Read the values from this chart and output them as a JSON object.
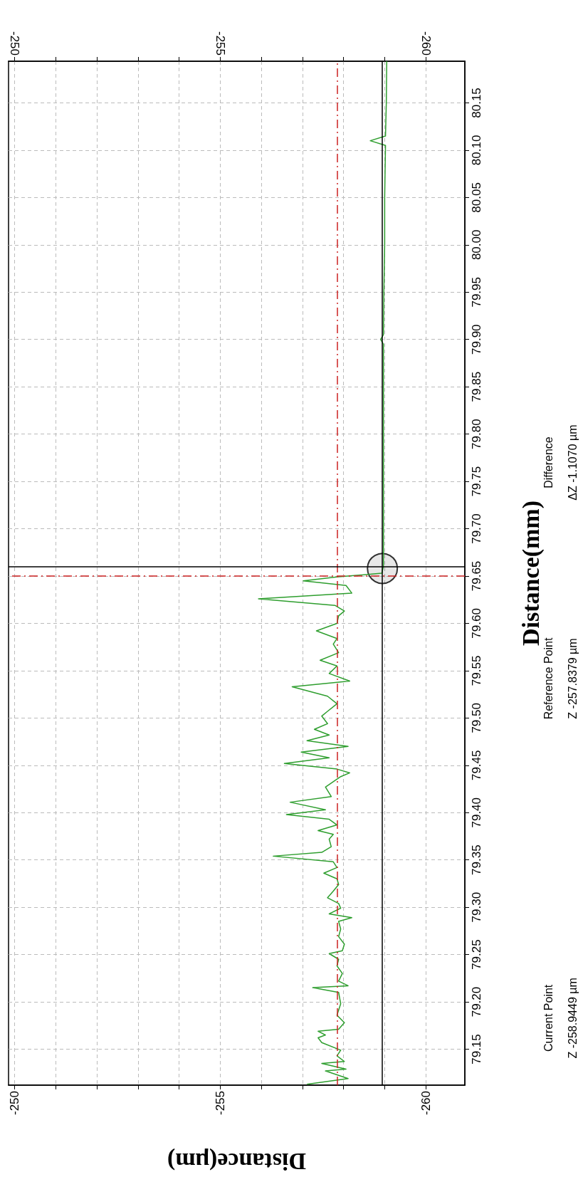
{
  "chart_data": {
    "type": "line",
    "xlabel": "Distance(μm)",
    "ylabel": "Distance(mm)",
    "xlim": [
      -249.85,
      -260.95
    ],
    "xticks": [
      {
        "value": -250,
        "label": "-250"
      },
      {
        "value": -251,
        "label": null
      },
      {
        "value": -252,
        "label": null
      },
      {
        "value": -253,
        "label": null
      },
      {
        "value": -254,
        "label": null
      },
      {
        "value": -255,
        "label": "-255"
      },
      {
        "value": -256,
        "label": null
      },
      {
        "value": -257,
        "label": null
      },
      {
        "value": -258,
        "label": null
      },
      {
        "value": -259,
        "label": null
      },
      {
        "value": -260,
        "label": "-260"
      }
    ],
    "x2lim": [
      -249.85,
      -260.95
    ],
    "x2ticks": [
      {
        "value": -250,
        "label": "-250"
      },
      {
        "value": -251,
        "label": null
      },
      {
        "value": -252,
        "label": null
      },
      {
        "value": -253,
        "label": null
      },
      {
        "value": -254,
        "label": null
      },
      {
        "value": -255,
        "label": "-255"
      },
      {
        "value": -256,
        "label": null
      },
      {
        "value": -257,
        "label": null
      },
      {
        "value": -258,
        "label": null
      },
      {
        "value": -259,
        "label": null
      },
      {
        "value": -260,
        "label": "-260"
      }
    ],
    "ylim": [
      79.112,
      80.194
    ],
    "yticks": [
      {
        "value": 79.15,
        "label": "79.15"
      },
      {
        "value": 79.2,
        "label": "79.20"
      },
      {
        "value": 79.25,
        "label": "79.25"
      },
      {
        "value": 79.3,
        "label": "79.30"
      },
      {
        "value": 79.35,
        "label": "79.35"
      },
      {
        "value": 79.4,
        "label": "79.40"
      },
      {
        "value": 79.45,
        "label": "79.45"
      },
      {
        "value": 79.5,
        "label": "79.50"
      },
      {
        "value": 79.55,
        "label": "79.55"
      },
      {
        "value": 79.6,
        "label": "79.60"
      },
      {
        "value": 79.65,
        "label": "79.65"
      },
      {
        "value": 79.7,
        "label": "79.70"
      },
      {
        "value": 79.75,
        "label": "79.75"
      },
      {
        "value": 79.8,
        "label": "79.80"
      },
      {
        "value": 79.85,
        "label": "79.85"
      },
      {
        "value": 79.9,
        "label": "79.90"
      },
      {
        "value": 79.95,
        "label": "79.95"
      },
      {
        "value": 80.0,
        "label": "80.00"
      },
      {
        "value": 80.05,
        "label": "80.05"
      },
      {
        "value": 80.1,
        "label": "80.10"
      },
      {
        "value": 80.15,
        "label": "80.15"
      }
    ],
    "grid": true,
    "series": [
      {
        "type": "line",
        "color": "#2e9e2e",
        "marker": "none",
        "line_style": "solid",
        "values": [
          79.113,
          79.119,
          79.127,
          79.129,
          79.135,
          79.137,
          79.143,
          79.149,
          79.157,
          79.162,
          79.165,
          79.169,
          79.171,
          79.178,
          79.186,
          79.198,
          79.21,
          79.215,
          79.217,
          79.222,
          79.23,
          79.238,
          79.245,
          79.251,
          79.254,
          79.261,
          79.269,
          79.277,
          79.285,
          79.289,
          79.293,
          79.299,
          79.304,
          79.31,
          79.317,
          79.324,
          79.33,
          79.336,
          79.342,
          79.348,
          79.354,
          79.358,
          79.364,
          79.372,
          79.377,
          79.381,
          79.387,
          79.393,
          79.398,
          79.403,
          79.411,
          79.417,
          79.427,
          79.438,
          79.442,
          79.446,
          79.452,
          79.458,
          79.464,
          79.47,
          79.476,
          79.482,
          79.488,
          79.494,
          79.502,
          79.507,
          79.515,
          79.523,
          79.533,
          79.539,
          79.547,
          79.555,
          79.561,
          79.569,
          79.578,
          79.584,
          79.592,
          79.6,
          79.608,
          79.613,
          79.619,
          79.626,
          79.632,
          79.64,
          79.645,
          79.649,
          79.653,
          79.66,
          79.7,
          79.8,
          79.895,
          79.9,
          79.905,
          79.95,
          80.0,
          80.05,
          80.105,
          80.11,
          80.115,
          80.15,
          80.194
        ],
        "x": [
          -257.11,
          -258.11,
          -257.56,
          -258.06,
          -257.47,
          -258.02,
          -257.84,
          -257.93,
          -257.47,
          -257.38,
          -257.56,
          -257.38,
          -257.88,
          -258.02,
          -257.84,
          -257.93,
          -257.88,
          -257.25,
          -258.11,
          -257.88,
          -257.97,
          -257.84,
          -257.88,
          -257.65,
          -257.97,
          -258.02,
          -257.88,
          -257.93,
          -257.88,
          -258.2,
          -257.65,
          -257.93,
          -257.88,
          -257.61,
          -257.75,
          -257.88,
          -257.84,
          -257.52,
          -257.84,
          -257.75,
          -256.29,
          -257.47,
          -257.7,
          -257.65,
          -257.75,
          -257.38,
          -257.84,
          -257.65,
          -256.61,
          -257.56,
          -256.7,
          -257.7,
          -257.56,
          -257.93,
          -258.15,
          -257.84,
          -256.56,
          -257.65,
          -256.97,
          -258.11,
          -257.11,
          -257.65,
          -257.29,
          -257.61,
          -257.47,
          -257.61,
          -257.84,
          -257.61,
          -256.75,
          -258.15,
          -257.65,
          -257.84,
          -257.43,
          -257.88,
          -257.75,
          -257.84,
          -257.34,
          -257.84,
          -257.88,
          -258.02,
          -257.79,
          -255.93,
          -258.2,
          -258.06,
          -257.02,
          -257.84,
          -258.93,
          -258.97,
          -258.97,
          -258.97,
          -258.97,
          -258.9,
          -258.97,
          -258.98,
          -259.0,
          -259.0,
          -259.02,
          -258.65,
          -259.02,
          -259.04,
          -259.05
        ]
      },
      {
        "type": "scatter",
        "color": "#000000",
        "marker": "circle",
        "x": [
          -258.9449
        ],
        "values": [
          79.658
        ]
      }
    ],
    "ref_lines": [
      {
        "axis": "x",
        "value": -257.8379,
        "color": "#cc2222",
        "line_style": "dashed"
      },
      {
        "axis": "y",
        "value": 79.651,
        "color": "#cc2222",
        "line_style": "dashed"
      },
      {
        "axis": "x",
        "value": -258.9449,
        "color": "#000000",
        "line_style": "solid"
      },
      {
        "axis": "y",
        "value": 79.658,
        "color": "#000000",
        "line_style": "solid"
      }
    ],
    "annotations": [
      "Current Point\nZ -258.9449 µm",
      "Reference Point\nZ -257.8379 µm",
      "Difference\nΔZ -1.1070 µm"
    ]
  }
}
